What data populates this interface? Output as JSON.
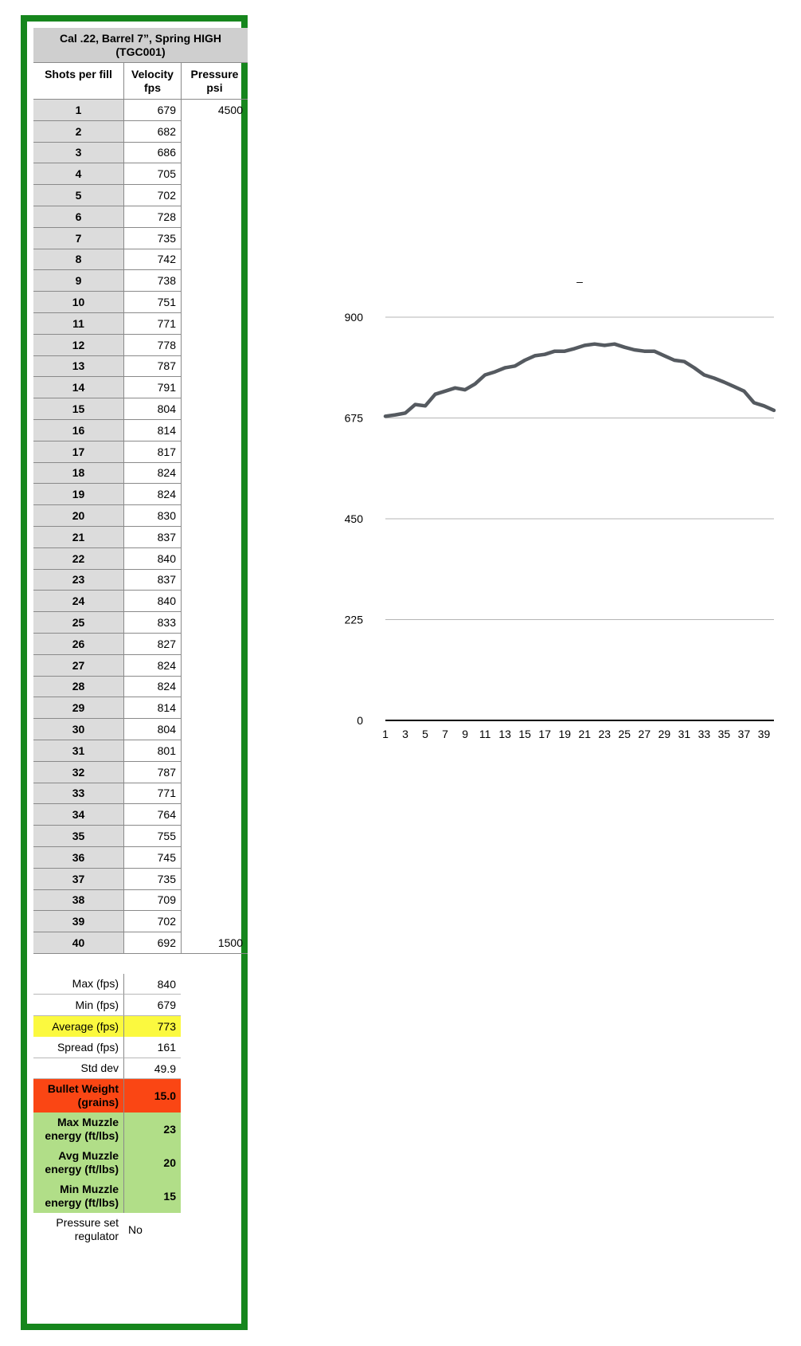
{
  "table": {
    "title_line1": "Cal .22, Barrel  7”, Spring HIGH",
    "title_line2": "(TGC001)",
    "headers": {
      "shots": "Shots per fill",
      "velocity_line1": "Velocity",
      "velocity_line2": "fps",
      "pressure_line1": "Pressure",
      "pressure_line2": "psi"
    },
    "rows": [
      {
        "shot": "1",
        "velocity": "679",
        "pressure": "4500"
      },
      {
        "shot": "2",
        "velocity": "682",
        "pressure": ""
      },
      {
        "shot": "3",
        "velocity": "686",
        "pressure": ""
      },
      {
        "shot": "4",
        "velocity": "705",
        "pressure": ""
      },
      {
        "shot": "5",
        "velocity": "702",
        "pressure": ""
      },
      {
        "shot": "6",
        "velocity": "728",
        "pressure": ""
      },
      {
        "shot": "7",
        "velocity": "735",
        "pressure": ""
      },
      {
        "shot": "8",
        "velocity": "742",
        "pressure": ""
      },
      {
        "shot": "9",
        "velocity": "738",
        "pressure": ""
      },
      {
        "shot": "10",
        "velocity": "751",
        "pressure": ""
      },
      {
        "shot": "11",
        "velocity": "771",
        "pressure": ""
      },
      {
        "shot": "12",
        "velocity": "778",
        "pressure": ""
      },
      {
        "shot": "13",
        "velocity": "787",
        "pressure": ""
      },
      {
        "shot": "14",
        "velocity": "791",
        "pressure": ""
      },
      {
        "shot": "15",
        "velocity": "804",
        "pressure": ""
      },
      {
        "shot": "16",
        "velocity": "814",
        "pressure": ""
      },
      {
        "shot": "17",
        "velocity": "817",
        "pressure": ""
      },
      {
        "shot": "18",
        "velocity": "824",
        "pressure": ""
      },
      {
        "shot": "19",
        "velocity": "824",
        "pressure": ""
      },
      {
        "shot": "20",
        "velocity": "830",
        "pressure": ""
      },
      {
        "shot": "21",
        "velocity": "837",
        "pressure": ""
      },
      {
        "shot": "22",
        "velocity": "840",
        "pressure": ""
      },
      {
        "shot": "23",
        "velocity": "837",
        "pressure": ""
      },
      {
        "shot": "24",
        "velocity": "840",
        "pressure": ""
      },
      {
        "shot": "25",
        "velocity": "833",
        "pressure": ""
      },
      {
        "shot": "26",
        "velocity": "827",
        "pressure": ""
      },
      {
        "shot": "27",
        "velocity": "824",
        "pressure": ""
      },
      {
        "shot": "28",
        "velocity": "824",
        "pressure": ""
      },
      {
        "shot": "29",
        "velocity": "814",
        "pressure": ""
      },
      {
        "shot": "30",
        "velocity": "804",
        "pressure": ""
      },
      {
        "shot": "31",
        "velocity": "801",
        "pressure": ""
      },
      {
        "shot": "32",
        "velocity": "787",
        "pressure": ""
      },
      {
        "shot": "33",
        "velocity": "771",
        "pressure": ""
      },
      {
        "shot": "34",
        "velocity": "764",
        "pressure": ""
      },
      {
        "shot": "35",
        "velocity": "755",
        "pressure": ""
      },
      {
        "shot": "36",
        "velocity": "745",
        "pressure": ""
      },
      {
        "shot": "37",
        "velocity": "735",
        "pressure": ""
      },
      {
        "shot": "38",
        "velocity": "709",
        "pressure": ""
      },
      {
        "shot": "39",
        "velocity": "702",
        "pressure": ""
      },
      {
        "shot": "40",
        "velocity": "692",
        "pressure": "1500"
      }
    ]
  },
  "stats": {
    "max_label": "Max (fps)",
    "max_value": "840",
    "min_label": "Min (fps)",
    "min_value": "679",
    "avg_label": "Average (fps)",
    "avg_value": "773",
    "spread_label": "Spread (fps)",
    "spread_value": "161",
    "std_label": "Std dev",
    "std_value": "49.9",
    "bullet_label_1": "Bullet Weight",
    "bullet_label_2": "(grains)",
    "bullet_value": "15.0",
    "maxe_label_1": "Max Muzzle",
    "maxe_label_2": "energy (ft/lbs)",
    "maxe_value": "23",
    "avge_label_1": "Avg Muzzle",
    "avge_label_2": "energy (ft/lbs)",
    "avge_value": "20",
    "mine_label_1": "Min Muzzle",
    "mine_label_2": "energy (ft/lbs)",
    "mine_value": "15",
    "reg_label_1": "Pressure set",
    "reg_label_2": "regulator",
    "reg_value": "No"
  },
  "colors": {
    "border_green": "#16861d",
    "average_yellow": "#fbf93f",
    "bullet_red": "#fa4614",
    "energy_green": "#b1de88",
    "line_gray": "#555a60"
  },
  "chart_data": {
    "type": "line",
    "title": "–",
    "xlabel": "",
    "ylabel": "",
    "x": [
      1,
      2,
      3,
      4,
      5,
      6,
      7,
      8,
      9,
      10,
      11,
      12,
      13,
      14,
      15,
      16,
      17,
      18,
      19,
      20,
      21,
      22,
      23,
      24,
      25,
      26,
      27,
      28,
      29,
      30,
      31,
      32,
      33,
      34,
      35,
      36,
      37,
      38,
      39,
      40
    ],
    "x_tick_labels": [
      "1",
      "3",
      "5",
      "7",
      "9",
      "11",
      "13",
      "15",
      "17",
      "19",
      "21",
      "23",
      "25",
      "27",
      "29",
      "31",
      "33",
      "35",
      "37",
      "39"
    ],
    "y_tick_labels": [
      "0",
      "225",
      "450",
      "675",
      "900"
    ],
    "ylim": [
      0,
      900
    ],
    "grid": true,
    "legend": "none",
    "series": [
      {
        "values": [
          679,
          682,
          686,
          705,
          702,
          728,
          735,
          742,
          738,
          751,
          771,
          778,
          787,
          791,
          804,
          814,
          817,
          824,
          824,
          830,
          837,
          840,
          837,
          840,
          833,
          827,
          824,
          824,
          814,
          804,
          801,
          787,
          771,
          764,
          755,
          745,
          735,
          709,
          702,
          692
        ]
      }
    ]
  }
}
